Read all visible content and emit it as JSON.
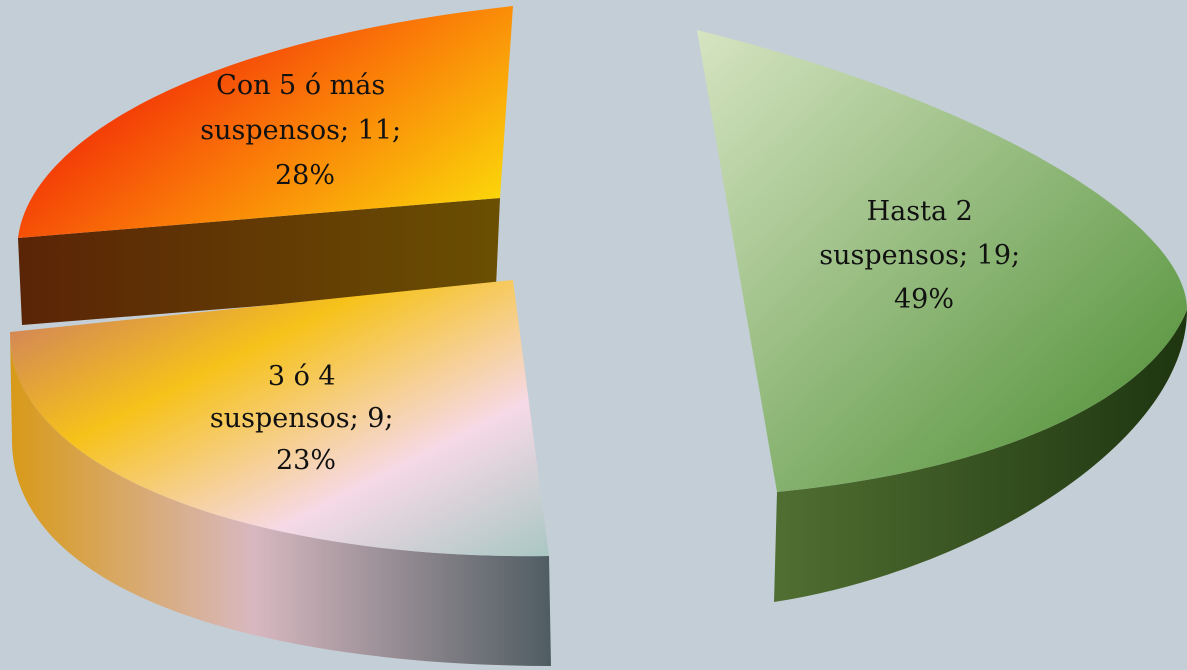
{
  "chart_data": {
    "type": "pie",
    "three_d": true,
    "exploded": true,
    "title": "",
    "slices": [
      {
        "category": "Hasta 2 suspensos",
        "value": 19,
        "percent": 49,
        "label_lines": [
          "Hasta 2",
          "suspensos; 19;",
          "49%"
        ],
        "colors": {
          "top_light": "#d6e4c2",
          "top_dark": "#4a8c30",
          "side_light": "#5a7a38",
          "side_dark": "#1e3510"
        }
      },
      {
        "category": "3 ó 4 suspensos",
        "value": 9,
        "percent": 23,
        "label_lines": [
          "3 ó 4",
          "suspensos; 9;",
          "23%"
        ],
        "colors": {
          "top_a": "#c8746a",
          "top_b": "#f6c21a",
          "top_c": "#f6d9e6",
          "top_d": "#a9c7c3",
          "side_a": "#d89a18",
          "side_b": "#d8b8c0",
          "side_c": "#4f5d63"
        }
      },
      {
        "category": "Con 5 ó más suspensos",
        "value": 11,
        "percent": 28,
        "label_lines": [
          "Con 5 ó más",
          "suspensos; 11;",
          "28%"
        ],
        "colors": {
          "top_a": "#ee0606",
          "top_b": "#fa7a08",
          "top_c": "#fbd60a",
          "side_a": "#5a2406",
          "side_b": "#6a4f02"
        }
      }
    ]
  }
}
